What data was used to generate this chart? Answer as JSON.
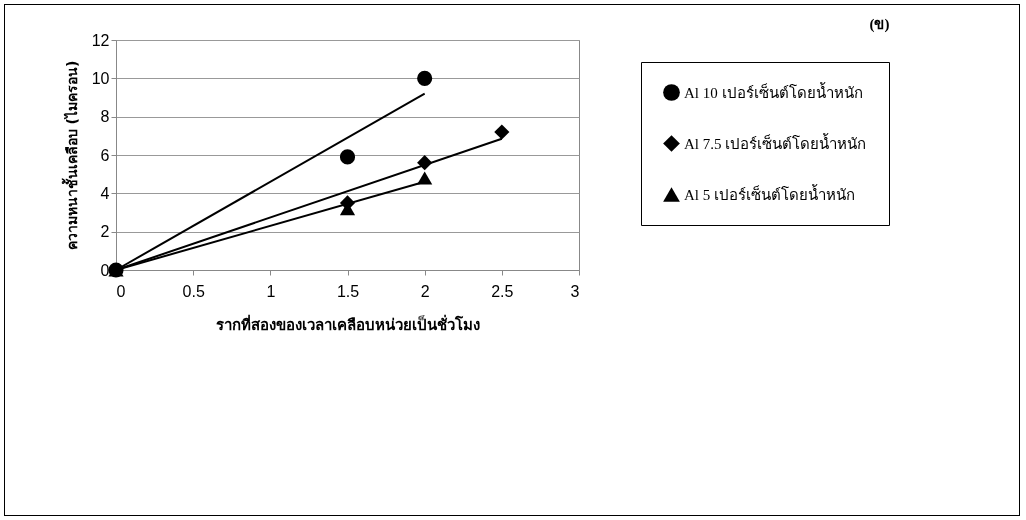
{
  "chart_data": {
    "type": "scatter",
    "xlabel": "รากที่สองของเวลาเคลือบหน่วยเป็นชั่วโมง",
    "ylabel": "ความหนาชั้นเคลือบ (ไมครอน)",
    "annotations": [
      "(ข)"
    ],
    "x": [
      0,
      1.5,
      2
    ],
    "series": [
      {
        "name": "Al 10 เปอร์เซ็นต์โดยน้ำหนัก",
        "color": "#000000",
        "marker": "circle",
        "values": [
          0,
          5.9,
          10
        ]
      },
      {
        "name": "Al 7.5 เปอร์เซ็นต์โดยน้ำหนัก",
        "color": "#000000",
        "marker": "diamond",
        "x": [
          1.5,
          2,
          2.5
        ],
        "values": [
          3.5,
          5.6,
          7.2
        ]
      },
      {
        "name": "Al 5 เปอร์เซ็นต์โดยน้ำหนัก",
        "color": "#000000",
        "marker": "triangle",
        "values": [
          0,
          3.2,
          4.8
        ]
      },
      {
        "type": "line",
        "color": "#000000",
        "x": [
          0,
          2
        ],
        "values": [
          0,
          9.2
        ]
      },
      {
        "type": "line",
        "color": "#000000",
        "x": [
          0,
          2.5
        ],
        "values": [
          0,
          6.85
        ]
      },
      {
        "type": "line",
        "color": "#000000",
        "x": [
          0,
          2
        ],
        "values": [
          0,
          4.6
        ]
      }
    ],
    "xlim": [
      0,
      3
    ],
    "xticks": [
      0,
      0.5,
      1,
      1.5,
      2,
      2.5,
      3
    ],
    "ylim": [
      0,
      12
    ],
    "yticks": [
      0,
      2,
      4,
      6,
      8,
      10,
      12
    ],
    "grid": "y",
    "legend": "right"
  }
}
